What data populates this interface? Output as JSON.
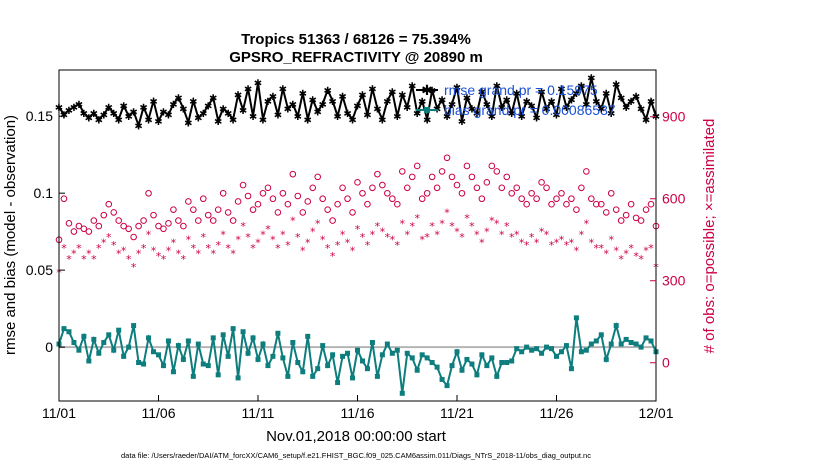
{
  "colors": {
    "rmse": "#000000",
    "bias": "#0d7d7d",
    "obs": "#cc0044",
    "zero": "#b4b4b4",
    "legend_text": "#1a4fd6"
  },
  "chart_data": {
    "type": "line",
    "title_line1": "Tropics 51363 / 68126 = 75.394%",
    "title_line2": "GPSRO_REFRACTIVITY @ 20890 m",
    "xlabel": "Nov.01,2018 00:00:00 start",
    "ylabel": "rmse and bias (model - observation)",
    "ylabel_right": "# of obs: o=possible; ×=assimilated",
    "footnote": "data file: /Users/raeder/DAI/ATM_forcXX/CAM6_setup/f.e21.FHIST_BGC.f09_025.CAM6assim.011/Diags_NTrS_2018-11/obs_diag_output.nc",
    "x_ticks": [
      "11/01",
      "11/06",
      "11/11",
      "11/16",
      "11/21",
      "11/26",
      "12/01"
    ],
    "y_ticks": [
      "0",
      "0.05",
      "0.1",
      "0.15"
    ],
    "y2_ticks": [
      "0",
      "300",
      "600",
      "900"
    ],
    "xlim": [
      0,
      30
    ],
    "ylim": [
      -0.035,
      0.18
    ],
    "y2lim": [
      -140,
      1071
    ],
    "legend": [
      {
        "name": "rmse",
        "text": "rmse grand pr = 0.15975"
      },
      {
        "name": "bias",
        "text": "bias grand pr = 0.00086537"
      }
    ],
    "series": [
      {
        "name": "rmse",
        "axis": "left",
        "values": [
          0.156,
          0.151,
          0.154,
          0.156,
          0.158,
          0.152,
          0.149,
          0.152,
          0.148,
          0.151,
          0.156,
          0.152,
          0.148,
          0.157,
          0.15,
          0.153,
          0.144,
          0.156,
          0.148,
          0.16,
          0.147,
          0.153,
          0.151,
          0.158,
          0.162,
          0.155,
          0.146,
          0.16,
          0.149,
          0.152,
          0.157,
          0.162,
          0.147,
          0.155,
          0.152,
          0.148,
          0.164,
          0.154,
          0.168,
          0.15,
          0.172,
          0.148,
          0.16,
          0.163,
          0.151,
          0.168,
          0.155,
          0.158,
          0.15,
          0.165,
          0.148,
          0.161,
          0.153,
          0.158,
          0.167,
          0.16,
          0.15,
          0.163,
          0.152,
          0.148,
          0.157,
          0.164,
          0.151,
          0.168,
          0.155,
          0.148,
          0.16,
          0.166,
          0.15,
          0.164,
          0.156,
          0.17,
          0.152,
          0.16,
          0.148,
          0.167,
          0.155,
          0.161,
          0.15,
          0.158,
          0.169,
          0.147,
          0.162,
          0.155,
          0.152,
          0.166,
          0.158,
          0.15,
          0.17,
          0.156,
          0.161,
          0.152,
          0.165,
          0.15,
          0.16,
          0.157,
          0.149,
          0.166,
          0.155,
          0.16,
          0.151,
          0.168,
          0.156,
          0.161,
          0.165,
          0.17,
          0.158,
          0.175,
          0.16,
          0.155,
          0.165,
          0.152,
          0.171,
          0.162,
          0.156,
          0.16,
          0.163,
          0.155,
          0.148,
          0.16,
          0.15
        ]
      },
      {
        "name": "bias",
        "axis": "left",
        "values": [
          0.002,
          0.012,
          0.01,
          0.003,
          -0.002,
          0.007,
          -0.009,
          0.005,
          -0.004,
          0.003,
          0.008,
          -0.002,
          0.011,
          -0.006,
          0.0,
          0.014,
          -0.01,
          -0.011,
          0.006,
          -0.003,
          -0.005,
          -0.012,
          0.004,
          -0.016,
          0.001,
          -0.008,
          0.004,
          -0.019,
          0.002,
          -0.011,
          -0.012,
          0.006,
          -0.018,
          0.008,
          -0.006,
          0.012,
          -0.02,
          0.01,
          -0.004,
          0.006,
          -0.008,
          0.002,
          -0.012,
          -0.006,
          0.009,
          -0.007,
          -0.019,
          0.003,
          -0.01,
          -0.016,
          0.007,
          -0.019,
          -0.014,
          0.001,
          -0.012,
          -0.005,
          -0.023,
          -0.006,
          -0.004,
          -0.02,
          -0.002,
          -0.009,
          -0.014,
          0.003,
          -0.019,
          -0.005,
          0.002,
          -0.004,
          -0.002,
          -0.03,
          -0.004,
          -0.007,
          -0.015,
          -0.005,
          -0.007,
          -0.01,
          -0.013,
          -0.021,
          -0.025,
          -0.012,
          -0.003,
          -0.015,
          -0.008,
          -0.011,
          -0.018,
          -0.005,
          -0.012,
          -0.007,
          -0.019,
          -0.01,
          -0.01,
          -0.009,
          -0.001,
          -0.003,
          0.0,
          -0.002,
          -0.001,
          -0.004,
          0.0,
          -0.001,
          -0.006,
          -0.003,
          0.001,
          -0.014,
          0.019,
          -0.003,
          -0.002,
          0.002,
          0.004,
          0.008,
          -0.008,
          0.002,
          0.014,
          0.002,
          0.005,
          0.003,
          0.002,
          0.0,
          0.006,
          0.004,
          -0.003
        ]
      },
      {
        "name": "possible",
        "axis": "right",
        "values": [
          450,
          600,
          510,
          480,
          500,
          490,
          480,
          520,
          500,
          540,
          580,
          550,
          520,
          500,
          490,
          460,
          500,
          520,
          620,
          540,
          500,
          490,
          510,
          560,
          520,
          500,
          590,
          560,
          520,
          600,
          540,
          520,
          560,
          620,
          550,
          520,
          590,
          650,
          610,
          560,
          580,
          620,
          640,
          600,
          550,
          620,
          580,
          690,
          610,
          550,
          590,
          640,
          680,
          600,
          560,
          520,
          580,
          640,
          600,
          550,
          660,
          620,
          580,
          640,
          690,
          650,
          620,
          600,
          580,
          700,
          640,
          680,
          720,
          600,
          620,
          680,
          640,
          700,
          750,
          680,
          650,
          620,
          720,
          680,
          640,
          600,
          660,
          720,
          700,
          640,
          680,
          620,
          640,
          600,
          580,
          620,
          600,
          660,
          640,
          580,
          600,
          620,
          580,
          600,
          560,
          640,
          700,
          600,
          580,
          580,
          550,
          620,
          560,
          520,
          540,
          580,
          530,
          520,
          560,
          580,
          500
        ]
      },
      {
        "name": "assimilated",
        "axis": "right",
        "values": [
          330,
          420,
          380,
          400,
          420,
          380,
          400,
          380,
          420,
          440,
          460,
          430,
          400,
          410,
          380,
          350,
          400,
          420,
          470,
          410,
          390,
          380,
          410,
          440,
          400,
          380,
          450,
          420,
          400,
          460,
          420,
          400,
          430,
          470,
          420,
          400,
          450,
          500,
          460,
          420,
          440,
          470,
          490,
          450,
          420,
          470,
          430,
          520,
          460,
          410,
          440,
          480,
          510,
          450,
          420,
          390,
          430,
          470,
          440,
          410,
          490,
          460,
          430,
          470,
          500,
          480,
          460,
          450,
          430,
          510,
          470,
          500,
          530,
          450,
          460,
          500,
          470,
          510,
          550,
          500,
          480,
          460,
          530,
          500,
          470,
          440,
          480,
          520,
          510,
          470,
          500,
          460,
          470,
          440,
          430,
          460,
          440,
          480,
          470,
          430,
          440,
          450,
          430,
          440,
          410,
          470,
          510,
          440,
          420,
          420,
          400,
          450,
          410,
          380,
          400,
          420,
          390,
          380,
          410,
          420,
          350
        ]
      }
    ]
  }
}
